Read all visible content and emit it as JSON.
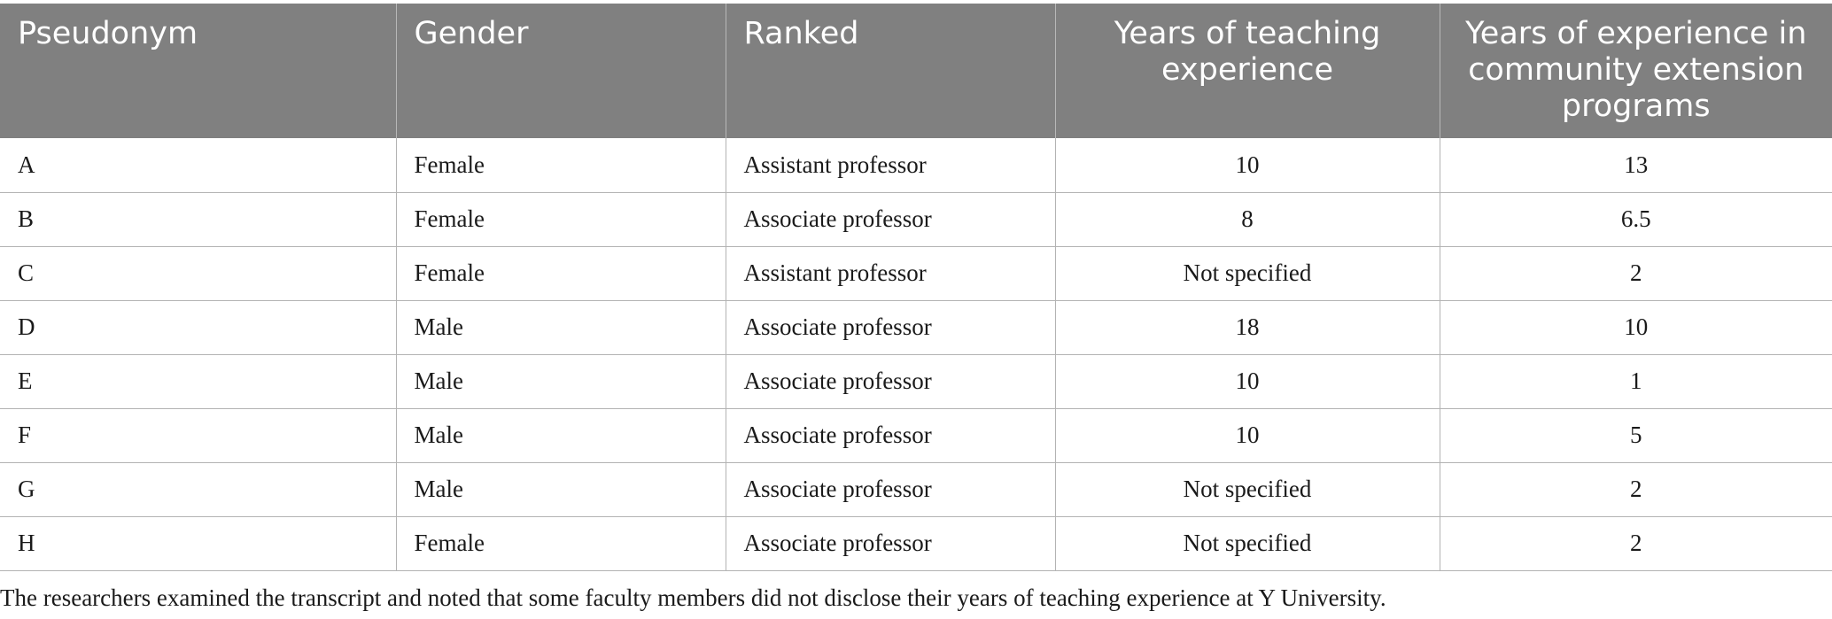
{
  "table": {
    "headers": [
      "Pseudonym",
      "Gender",
      "Ranked",
      "Years of teaching experience",
      "Years of experience in community extension programs"
    ],
    "rows": [
      [
        "A",
        "Female",
        "Assistant professor",
        "10",
        "13"
      ],
      [
        "B",
        "Female",
        "Associate professor",
        "8",
        "6.5"
      ],
      [
        "C",
        "Female",
        "Assistant professor",
        "Not specified",
        "2"
      ],
      [
        "D",
        "Male",
        "Associate professor",
        "18",
        "10"
      ],
      [
        "E",
        "Male",
        "Associate professor",
        "10",
        "1"
      ],
      [
        "F",
        "Male",
        "Associate professor",
        "10",
        "5"
      ],
      [
        "G",
        "Male",
        "Associate professor",
        "Not specified",
        "2"
      ],
      [
        "H",
        "Female",
        "Associate professor",
        "Not specified",
        "2"
      ]
    ]
  },
  "footnote": "The researchers examined the transcript and noted that some faculty members did not disclose their years of teaching experience at Y University.",
  "colors": {
    "header_background": "#808080",
    "header_text": "#ffffff",
    "grid_line": "#b3b3b3"
  }
}
